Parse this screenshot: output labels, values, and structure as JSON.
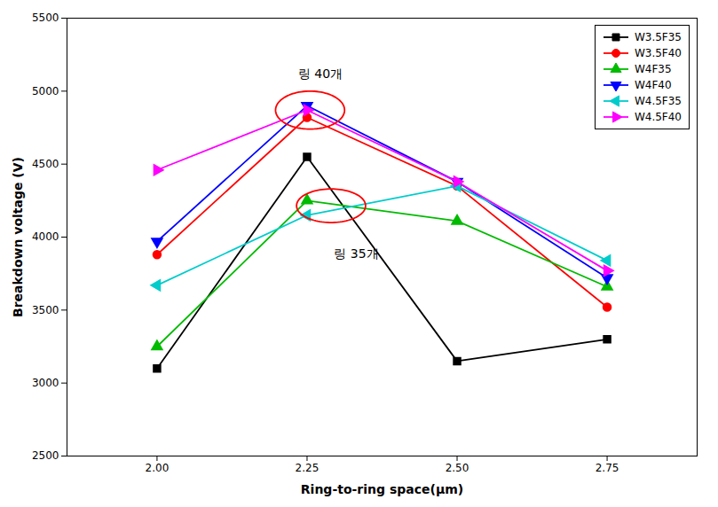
{
  "chart_data": {
    "type": "line",
    "x": [
      2.0,
      2.25,
      2.5,
      2.75
    ],
    "series": [
      {
        "name": "W3.5F35",
        "color": "#000000",
        "marker": "square",
        "line_style": "solid",
        "values": [
          3100,
          4550,
          3150,
          3300
        ]
      },
      {
        "name": "W3.5F40",
        "color": "#ff0000",
        "marker": "circle",
        "line_style": "solid",
        "values": [
          3880,
          4820,
          4350,
          3520
        ]
      },
      {
        "name": "W4F35",
        "color": "#00bb00",
        "marker": "triangle-up",
        "line_style": "solid",
        "values": [
          3250,
          4250,
          4110,
          3660
        ]
      },
      {
        "name": "W4F40",
        "color": "#0000ff",
        "marker": "triangle-down",
        "line_style": "solid",
        "values": [
          3970,
          4900,
          4380,
          3720
        ]
      },
      {
        "name": "W4.5F35",
        "color": "#00cccc",
        "marker": "triangle-left",
        "line_style": "solid",
        "values": [
          3670,
          4150,
          4350,
          3840
        ]
      },
      {
        "name": "W4.5F40",
        "color": "#ff00ff",
        "marker": "triangle-right",
        "line_style": "solid",
        "values": [
          4460,
          4870,
          4380,
          3770
        ]
      }
    ],
    "xlabel": "Ring-to-ring space(μm)",
    "ylabel": "Breakdown voltage (V)",
    "xlim": [
      1.85,
      2.9
    ],
    "ylim": [
      2500,
      5500
    ],
    "xticks": [
      {
        "value": 2.0,
        "label": "2.00"
      },
      {
        "value": 2.25,
        "label": "2.25"
      },
      {
        "value": 2.5,
        "label": "2.50"
      },
      {
        "value": 2.75,
        "label": "2.75"
      }
    ],
    "yticks": [
      2500,
      3000,
      3500,
      4000,
      4500,
      5000,
      5500
    ],
    "grid": false,
    "legend": "upper right",
    "annotations": [
      {
        "text": "링 40개",
        "x": 2.235,
        "y": 5090,
        "ellipse": {
          "x": 2.255,
          "y": 4870,
          "width": 0.115,
          "height": 260,
          "color": "#ff0000"
        }
      },
      {
        "text": "링 35개",
        "x": 2.295,
        "y": 3920,
        "ellipse": {
          "x": 2.29,
          "y": 4215,
          "width": 0.115,
          "height": 230,
          "color": "#ff0000"
        }
      }
    ]
  }
}
